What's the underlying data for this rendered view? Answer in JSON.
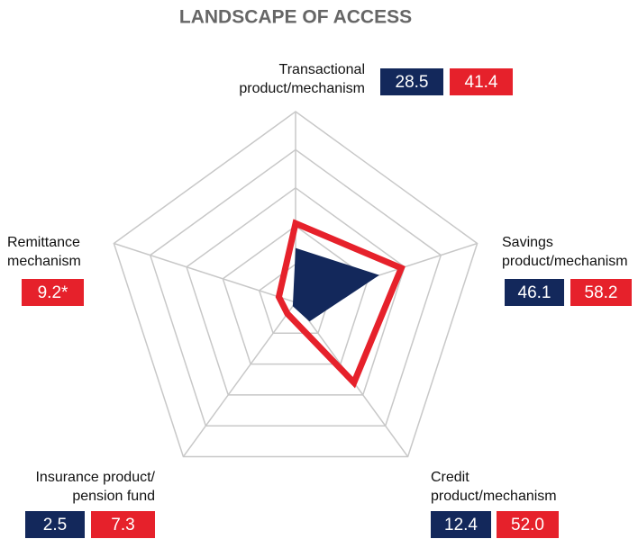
{
  "chart_data": {
    "type": "radar",
    "title": "LANDSCAPE OF ACCESS",
    "categories": [
      [
        "Transactional",
        "product/mechanism"
      ],
      [
        "Savings",
        "product/mechanism"
      ],
      [
        "Credit",
        "product/mechanism"
      ],
      [
        "Insurance product/",
        "pension fund"
      ],
      [
        "Remittance",
        "mechanism"
      ]
    ],
    "series": [
      {
        "color": "#13285b",
        "values": [
          28.5,
          46.1,
          12.4,
          2.5,
          null
        ],
        "value_labels": [
          "28.5",
          "46.1",
          "12.4",
          "2.5",
          null
        ]
      },
      {
        "color": "#e6212b",
        "values": [
          41.4,
          58.2,
          52.0,
          7.3,
          9.2
        ],
        "value_labels": [
          "41.4",
          "58.2",
          "52.0",
          "7.3",
          "9.2*"
        ]
      }
    ],
    "ylim": [
      0,
      100
    ],
    "yticks": [
      20,
      40,
      60,
      80,
      100
    ],
    "grid": true
  }
}
